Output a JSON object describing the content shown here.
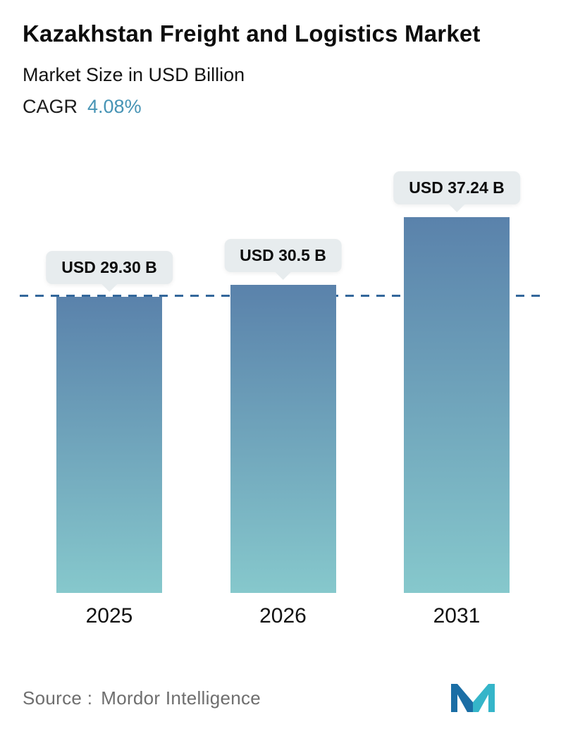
{
  "header": {
    "title": "Kazakhstan Freight and Logistics Market",
    "subtitle": "Market Size in USD Billion",
    "cagr_label": "CAGR",
    "cagr_value": "4.08%"
  },
  "chart_data": {
    "type": "bar",
    "title": "Kazakhstan Freight and Logistics Market",
    "subtitle": "Market Size in USD Billion",
    "cagr": "4.08%",
    "categories": [
      "2025",
      "2026",
      "2031"
    ],
    "values": [
      29.3,
      30.5,
      37.24
    ],
    "value_labels": [
      "USD 29.30 B",
      "USD 30.5 B",
      "USD 37.24 B"
    ],
    "unit": "USD Billion",
    "ylim": [
      0,
      43
    ],
    "reference_line": 29.3,
    "grid": false,
    "legend": "none",
    "bar_gradient_top": "#5a82ab",
    "bar_gradient_bottom": "#86c8cc",
    "dashed_line_color": "#33679b",
    "label_bg": "#e7ecee",
    "cagr_value_color": "#4794b5"
  },
  "footer": {
    "source_label": "Source :",
    "source_value": "Mordor Intelligence"
  }
}
